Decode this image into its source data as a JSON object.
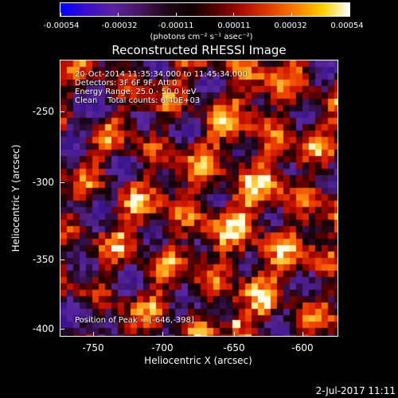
{
  "colorbar": {
    "gradient": [
      "#0000ff",
      "#3a0fc8",
      "#5a22a0",
      "#4a1560",
      "#200818",
      "#100000",
      "#5a0000",
      "#b01000",
      "#e04000",
      "#ff8000",
      "#ffd000",
      "#ffffff"
    ],
    "ticks": [
      "-0.00054",
      "-0.00032",
      "-0.00011",
      "0.00011",
      "0.00032",
      "0.00054"
    ],
    "units": "(photons cm⁻² s⁻¹ asec⁻²)"
  },
  "title": "Reconstructed RHESSI Image",
  "info": {
    "time": "20-Oct-2014 11:35:34.000 to 11:45:34.000",
    "detectors": "Detectors: 3F 6F 9F, Att 0",
    "energy": "Energy Range: 25.0 - 50.0 keV",
    "clean": "Clean    Total counts: 6.40E+03",
    "peak": "Position of Peak = [-646,-398]"
  },
  "axes": {
    "xlabel": "Heliocentric X (arcsec)",
    "ylabel": "Heliocentric Y (arcsec)",
    "xticks": [
      "-750",
      "-700",
      "-650",
      "-600"
    ],
    "yticks": [
      "-250",
      "-300",
      "-350",
      "-400"
    ],
    "xrange": [
      -774,
      -570
    ],
    "yrange": [
      -408,
      -206
    ]
  },
  "datestamp": "2-Jul-2017 11:11"
}
